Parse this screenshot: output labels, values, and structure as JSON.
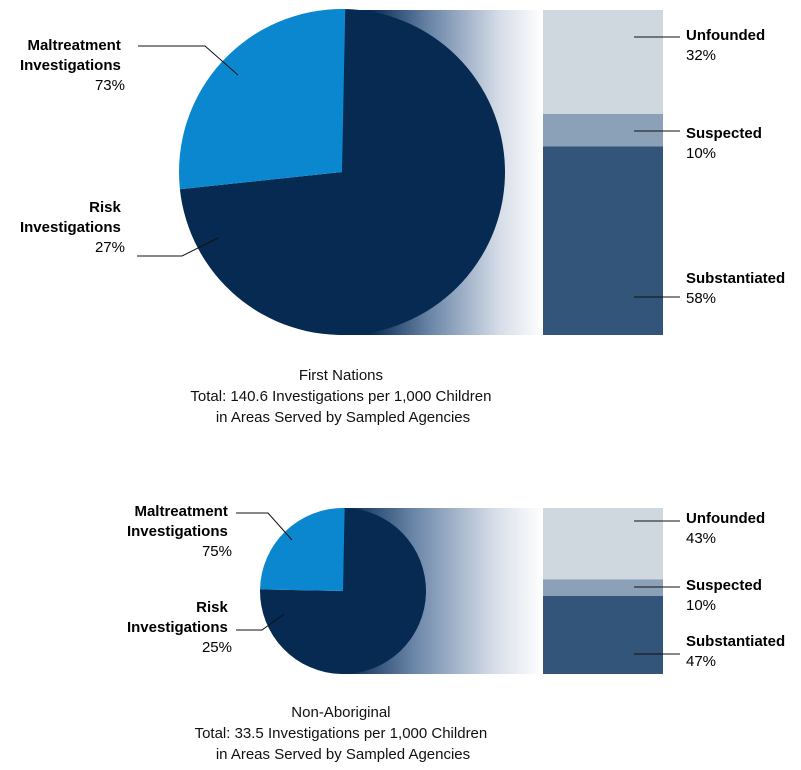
{
  "colors": {
    "maltreatment": "#062a52",
    "risk": "#0a87cf",
    "unfounded": "#cfd7df",
    "suspected": "#8aa1b7",
    "substantiated": "#33557a",
    "fan_light": "#ffffff"
  },
  "chart_data": [
    {
      "type": "pie",
      "group": "first-nations",
      "slices": [
        {
          "label_line1": "Maltreatment",
          "label_line2": "Investigations",
          "value": 73,
          "value_text": "73%"
        },
        {
          "label_line1": "Risk",
          "label_line2": "Investigations",
          "value": 27,
          "value_text": "27%"
        }
      ],
      "breakdown": {
        "type": "stacked-bar",
        "segments": [
          {
            "label": "Unfounded",
            "value": 32,
            "value_text": "32%"
          },
          {
            "label": "Suspected",
            "value": 10,
            "value_text": "10%"
          },
          {
            "label": "Substantiated",
            "value": 58,
            "value_text": "58%"
          }
        ]
      },
      "total_rate": 140.6,
      "caption": {
        "line1": "First Nations",
        "line2": "Total: 140.6 Investigations per 1,000 Children",
        "line3": "in Areas Served by Sampled Agencies"
      }
    },
    {
      "type": "pie",
      "group": "non-aboriginal",
      "slices": [
        {
          "label_line1": "Maltreatment",
          "label_line2": "Investigations",
          "value": 75,
          "value_text": "75%"
        },
        {
          "label_line1": "Risk",
          "label_line2": "Investigations",
          "value": 25,
          "value_text": "25%"
        }
      ],
      "breakdown": {
        "type": "stacked-bar",
        "segments": [
          {
            "label": "Unfounded",
            "value": 43,
            "value_text": "43%"
          },
          {
            "label": "Suspected",
            "value": 10,
            "value_text": "10%"
          },
          {
            "label": "Substantiated",
            "value": 47,
            "value_text": "47%"
          }
        ]
      },
      "total_rate": 33.5,
      "caption": {
        "line1": "Non-Aboriginal",
        "line2": "Total: 33.5 Investigations per 1,000 Children",
        "line3": "in Areas Served by Sampled Agencies"
      }
    }
  ]
}
